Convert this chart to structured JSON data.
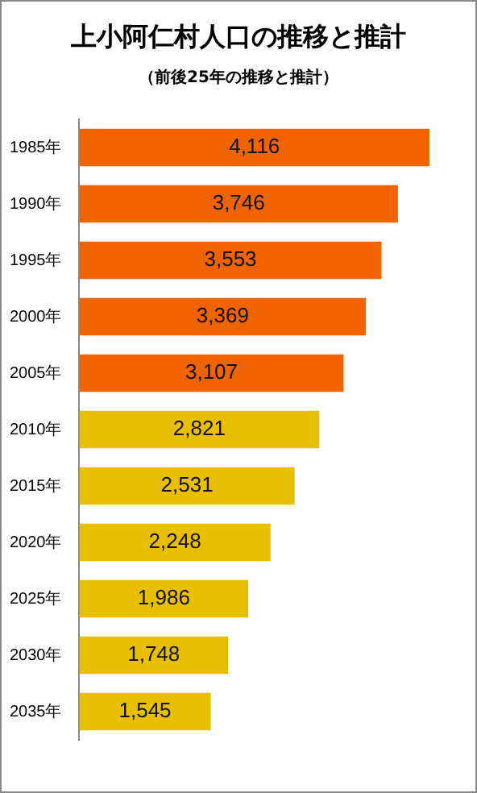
{
  "chart_data": {
    "type": "bar",
    "orientation": "horizontal",
    "title": "上小阿仁村人口の推移と推計",
    "subtitle": "（前後25年の推移と推計）",
    "categories": [
      "1985年",
      "1990年",
      "1995年",
      "2000年",
      "2005年",
      "2010年",
      "2015年",
      "2020年",
      "2025年",
      "2030年",
      "2035年"
    ],
    "values": [
      4116,
      3746,
      3553,
      3369,
      3107,
      2821,
      2531,
      2248,
      1986,
      1748,
      1545
    ],
    "colors": [
      "#f06400",
      "#f06400",
      "#f06400",
      "#f06400",
      "#f06400",
      "#e8bf00",
      "#e8bf00",
      "#e8bf00",
      "#e8bf00",
      "#e8bf00",
      "#e8bf00"
    ],
    "value_labels": [
      "4,116",
      "3,746",
      "3,553",
      "3,369",
      "3,107",
      "2,821",
      "2,531",
      "2,248",
      "1,986",
      "1,748",
      "1,545"
    ],
    "grid": false,
    "legend": false
  }
}
